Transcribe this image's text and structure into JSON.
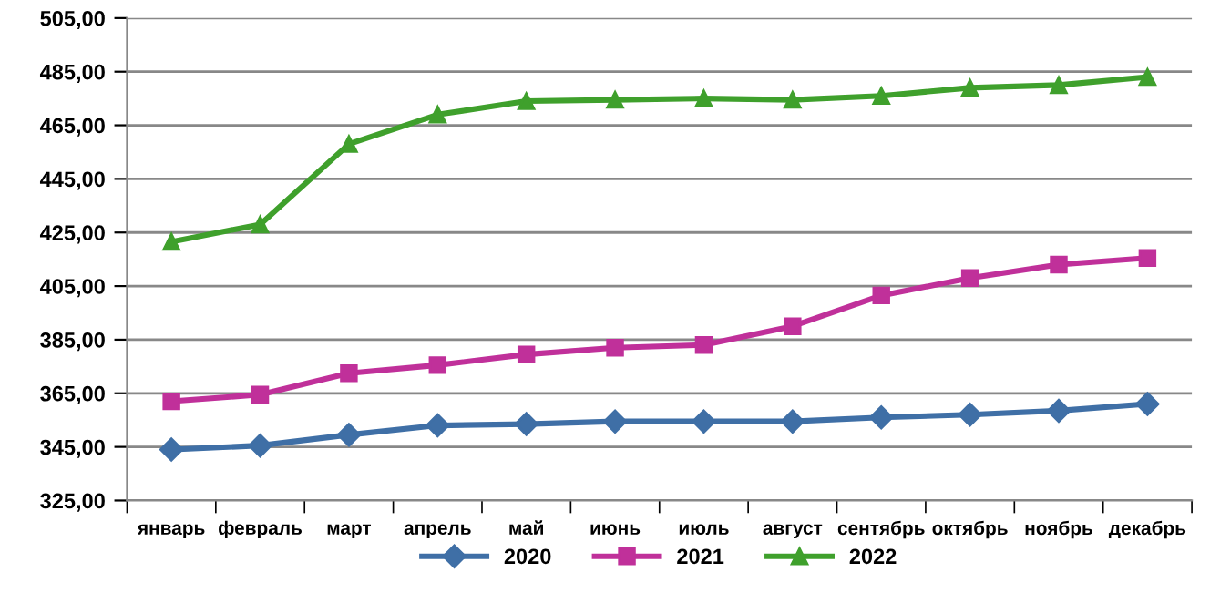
{
  "chart_data": {
    "type": "line",
    "categories": [
      "январь",
      "февраль",
      "март",
      "апрель",
      "май",
      "июнь",
      "июль",
      "август",
      "сентябрь",
      "октябрь",
      "ноябрь",
      "декабрь"
    ],
    "series": [
      {
        "name": "2020",
        "color": "#3f6fa6",
        "marker": "diamond",
        "values": [
          344,
          345.5,
          349.5,
          353,
          353.5,
          354.5,
          354.5,
          354.5,
          356,
          357,
          358.5,
          361
        ]
      },
      {
        "name": "2021",
        "color": "#c0309a",
        "marker": "square",
        "values": [
          362,
          364.5,
          372.5,
          375.5,
          379.5,
          382,
          383,
          390,
          401.5,
          408,
          413,
          415.5
        ]
      },
      {
        "name": "2022",
        "color": "#3fa02c",
        "marker": "triangle",
        "values": [
          421.5,
          428,
          458,
          469,
          474,
          474.5,
          475,
          474.5,
          476,
          479,
          480,
          483
        ]
      }
    ],
    "ylim": [
      325,
      505
    ],
    "yticks": [
      {
        "value": 325,
        "label": "325,00"
      },
      {
        "value": 345,
        "label": "345,00"
      },
      {
        "value": 365,
        "label": "365,00"
      },
      {
        "value": 385,
        "label": "385,00"
      },
      {
        "value": 405,
        "label": "405,00"
      },
      {
        "value": 425,
        "label": "425,00"
      },
      {
        "value": 445,
        "label": "445,00"
      },
      {
        "value": 465,
        "label": "465,00"
      },
      {
        "value": 485,
        "label": "485,00"
      },
      {
        "value": 505,
        "label": "505,00"
      }
    ],
    "grid": "y",
    "legend": "bottom",
    "line_style": "solid"
  }
}
